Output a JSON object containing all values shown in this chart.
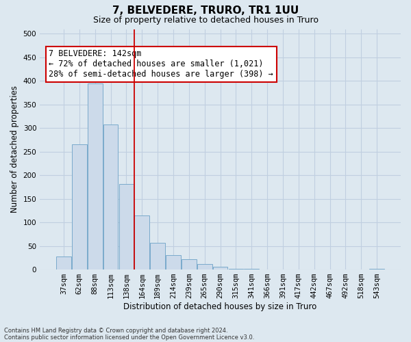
{
  "title": "7, BELVEDERE, TRURO, TR1 1UU",
  "subtitle": "Size of property relative to detached houses in Truro",
  "xlabel": "Distribution of detached houses by size in Truro",
  "ylabel": "Number of detached properties",
  "footnote1": "Contains HM Land Registry data © Crown copyright and database right 2024.",
  "footnote2": "Contains public sector information licensed under the Open Government Licence v3.0.",
  "bar_labels": [
    "37sqm",
    "62sqm",
    "88sqm",
    "113sqm",
    "138sqm",
    "164sqm",
    "189sqm",
    "214sqm",
    "239sqm",
    "265sqm",
    "290sqm",
    "315sqm",
    "341sqm",
    "366sqm",
    "391sqm",
    "417sqm",
    "442sqm",
    "467sqm",
    "492sqm",
    "518sqm",
    "543sqm"
  ],
  "bar_values": [
    28,
    265,
    395,
    308,
    182,
    115,
    57,
    30,
    22,
    12,
    6,
    2,
    1,
    0,
    0,
    0,
    0,
    0,
    0,
    0,
    2
  ],
  "bar_color": "#ccdaea",
  "bar_edge_color": "#7aaacb",
  "bar_width": 0.95,
  "vline_x": 4.5,
  "vline_color": "#cc0000",
  "ylim": [
    0,
    510
  ],
  "yticks": [
    0,
    50,
    100,
    150,
    200,
    250,
    300,
    350,
    400,
    450,
    500
  ],
  "annotation_text": "7 BELVEDERE: 142sqm\n← 72% of detached houses are smaller (1,021)\n28% of semi-detached houses are larger (398) →",
  "annotation_box_facecolor": "#ffffff",
  "annotation_box_edgecolor": "#cc0000",
  "bg_color": "#dde8f0",
  "plot_bg_color": "#dde8f0",
  "grid_color": "#c0cfe0",
  "title_fontsize": 11,
  "subtitle_fontsize": 9,
  "axis_label_fontsize": 8.5,
  "tick_fontsize": 7.5,
  "annotation_fontsize": 8.5,
  "footnote_fontsize": 6
}
